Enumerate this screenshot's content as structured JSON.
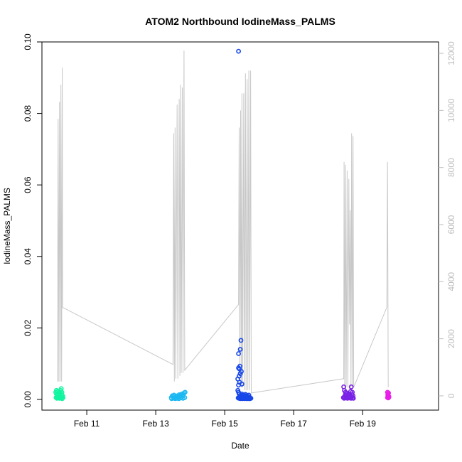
{
  "chart_data": {
    "type": "scatter",
    "title": "ATOM2 Northbound IodineMass_PALMS",
    "xlabel": "Date",
    "ylabel": "IodineMass_PALMS",
    "x_range_days": [
      9.7,
      21.2
    ],
    "x_ticks": [
      {
        "day": 11,
        "label": "Feb 11"
      },
      {
        "day": 13,
        "label": "Feb 13"
      },
      {
        "day": 15,
        "label": "Feb 15"
      },
      {
        "day": 17,
        "label": "Feb 17"
      },
      {
        "day": 19,
        "label": "Feb 19"
      }
    ],
    "ylim": [
      -0.003,
      0.1
    ],
    "y_ticks": [
      0.0,
      0.02,
      0.04,
      0.06,
      0.08,
      0.1
    ],
    "y_tick_labels": [
      "0.00",
      "0.02",
      "0.04",
      "0.06",
      "0.08",
      "0.10"
    ],
    "y2lim": [
      -500,
      12400
    ],
    "y2_ticks": [
      0,
      2000,
      4000,
      6000,
      8000,
      10000,
      12000
    ],
    "y2_tick_labels": [
      "0",
      "2000",
      "4000",
      "6000",
      "8000",
      "10000",
      "12000"
    ],
    "altitude_track": {
      "color": "#c8c8c8",
      "points": [
        [
          10.15,
          500
        ],
        [
          10.17,
          9700
        ],
        [
          10.19,
          500
        ],
        [
          10.21,
          10300
        ],
        [
          10.23,
          500
        ],
        [
          10.25,
          10900
        ],
        [
          10.27,
          500
        ],
        [
          10.29,
          11500
        ],
        [
          10.3,
          3100
        ],
        [
          13.5,
          1100
        ],
        [
          13.52,
          9200
        ],
        [
          13.54,
          500
        ],
        [
          13.56,
          9400
        ],
        [
          13.58,
          600
        ],
        [
          13.62,
          10200
        ],
        [
          13.64,
          600
        ],
        [
          13.68,
          10400
        ],
        [
          13.7,
          700
        ],
        [
          13.72,
          10900
        ],
        [
          13.74,
          800
        ],
        [
          13.77,
          10800
        ],
        [
          13.79,
          800
        ],
        [
          13.82,
          12100
        ],
        [
          13.84,
          900
        ],
        [
          15.4,
          3200
        ],
        [
          15.42,
          9400
        ],
        [
          15.44,
          400
        ],
        [
          15.46,
          10000
        ],
        [
          15.48,
          300
        ],
        [
          15.5,
          10600
        ],
        [
          15.52,
          300
        ],
        [
          15.55,
          10600
        ],
        [
          15.57,
          200
        ],
        [
          15.6,
          11300
        ],
        [
          15.62,
          200
        ],
        [
          15.65,
          11100
        ],
        [
          15.67,
          200
        ],
        [
          15.7,
          11400
        ],
        [
          15.72,
          200
        ],
        [
          15.75,
          11400
        ],
        [
          15.77,
          100
        ],
        [
          18.45,
          600
        ],
        [
          18.46,
          8200
        ],
        [
          18.48,
          300
        ],
        [
          18.5,
          8100
        ],
        [
          18.52,
          300
        ],
        [
          18.55,
          7900
        ],
        [
          18.57,
          300
        ],
        [
          18.6,
          7600
        ],
        [
          18.62,
          2500
        ],
        [
          18.64,
          6500
        ],
        [
          18.66,
          300
        ],
        [
          18.68,
          9200
        ],
        [
          18.7,
          300
        ],
        [
          18.72,
          9100
        ],
        [
          18.74,
          300
        ],
        [
          19.7,
          3100
        ],
        [
          19.72,
          8200
        ],
        [
          19.74,
          300
        ]
      ]
    },
    "series": [
      {
        "color": "#12f5a0",
        "points": [
          [
            10.1,
            0.002
          ],
          [
            10.12,
            0.0025
          ],
          [
            10.14,
            0.001
          ],
          [
            10.16,
            0.0015
          ],
          [
            10.18,
            0.0008
          ],
          [
            10.2,
            0.002
          ],
          [
            10.22,
            0.0012
          ],
          [
            10.24,
            0.0025
          ],
          [
            10.26,
            0.003
          ],
          [
            10.28,
            0.002
          ],
          [
            10.3,
            0.001
          ],
          [
            10.11,
            0.0005
          ],
          [
            10.13,
            0.0003
          ],
          [
            10.15,
            0.0006
          ],
          [
            10.17,
            0.0004
          ],
          [
            10.19,
            0.0007
          ],
          [
            10.21,
            0.0003
          ],
          [
            10.23,
            0.0005
          ],
          [
            10.25,
            0.0004
          ],
          [
            10.27,
            0.0006
          ],
          [
            10.29,
            0.0002
          ],
          [
            10.31,
            0.0005
          ],
          [
            10.12,
            0.0015
          ],
          [
            10.16,
            0.0022
          ],
          [
            10.2,
            0.0009
          ],
          [
            10.24,
            0.0017
          ],
          [
            10.28,
            0.0013
          ]
        ]
      },
      {
        "color": "#1cb8f2",
        "points": [
          [
            13.45,
            0.0005
          ],
          [
            13.48,
            0.001
          ],
          [
            13.5,
            0.0008
          ],
          [
            13.53,
            0.0012
          ],
          [
            13.55,
            0.0006
          ],
          [
            13.58,
            0.0009
          ],
          [
            13.6,
            0.0004
          ],
          [
            13.63,
            0.001
          ],
          [
            13.65,
            0.0007
          ],
          [
            13.68,
            0.0013
          ],
          [
            13.7,
            0.0008
          ],
          [
            13.72,
            0.0011
          ],
          [
            13.75,
            0.0015
          ],
          [
            13.78,
            0.0009
          ],
          [
            13.8,
            0.0014
          ],
          [
            13.82,
            0.0018
          ],
          [
            13.85,
            0.002
          ],
          [
            13.46,
            0.0002
          ],
          [
            13.52,
            0.0003
          ],
          [
            13.57,
            0.0002
          ],
          [
            13.62,
            0.0003
          ],
          [
            13.67,
            0.0002
          ],
          [
            13.73,
            0.0004
          ],
          [
            13.79,
            0.0003
          ],
          [
            13.84,
            0.0005
          ]
        ]
      },
      {
        "color": "#1848e8",
        "points": [
          [
            15.4,
            0.0974
          ],
          [
            15.47,
            0.0165
          ],
          [
            15.45,
            0.014
          ],
          [
            15.4,
            0.0128
          ],
          [
            15.44,
            0.0093
          ],
          [
            15.4,
            0.0088
          ],
          [
            15.43,
            0.0085
          ],
          [
            15.48,
            0.0078
          ],
          [
            15.45,
            0.0072
          ],
          [
            15.42,
            0.0065
          ],
          [
            15.38,
            0.0057
          ],
          [
            15.5,
            0.0043
          ],
          [
            15.43,
            0.0048
          ],
          [
            15.4,
            0.004
          ],
          [
            15.38,
            0.0025
          ],
          [
            15.4,
            0.002
          ],
          [
            15.42,
            0.0015
          ],
          [
            15.44,
            0.001
          ],
          [
            15.46,
            0.0012
          ],
          [
            15.48,
            0.0008
          ],
          [
            15.5,
            0.0015
          ],
          [
            15.52,
            0.0006
          ],
          [
            15.54,
            0.0012
          ],
          [
            15.56,
            0.0009
          ],
          [
            15.58,
            0.0011
          ],
          [
            15.6,
            0.0014
          ],
          [
            15.62,
            0.0007
          ],
          [
            15.64,
            0.001
          ],
          [
            15.66,
            0.0005
          ],
          [
            15.68,
            0.0008
          ],
          [
            15.7,
            0.0012
          ],
          [
            15.72,
            0.0006
          ],
          [
            15.74,
            0.0004
          ],
          [
            15.76,
            0.0003
          ],
          [
            15.39,
            0.0004
          ],
          [
            15.41,
            0.0003
          ],
          [
            15.43,
            0.0005
          ],
          [
            15.45,
            0.0002
          ],
          [
            15.47,
            0.0004
          ],
          [
            15.49,
            0.0003
          ],
          [
            15.51,
            0.0002
          ],
          [
            15.53,
            0.0004
          ],
          [
            15.55,
            0.0003
          ],
          [
            15.57,
            0.0002
          ],
          [
            15.59,
            0.0004
          ],
          [
            15.61,
            0.0003
          ],
          [
            15.63,
            0.0002
          ],
          [
            15.65,
            0.0003
          ],
          [
            15.67,
            0.0002
          ],
          [
            15.69,
            0.0004
          ],
          [
            15.71,
            0.0002
          ],
          [
            15.73,
            0.0002
          ]
        ]
      },
      {
        "color": "#7a22e6",
        "points": [
          [
            18.45,
            0.0035
          ],
          [
            18.47,
            0.0025
          ],
          [
            18.5,
            0.002
          ],
          [
            18.52,
            0.0015
          ],
          [
            18.55,
            0.001
          ],
          [
            18.57,
            0.0012
          ],
          [
            18.6,
            0.0008
          ],
          [
            18.62,
            0.0015
          ],
          [
            18.65,
            0.0022
          ],
          [
            18.67,
            0.0035
          ],
          [
            18.7,
            0.002
          ],
          [
            18.72,
            0.001
          ],
          [
            18.44,
            0.0005
          ],
          [
            18.46,
            0.0003
          ],
          [
            18.48,
            0.0006
          ],
          [
            18.51,
            0.0004
          ],
          [
            18.53,
            0.0005
          ],
          [
            18.56,
            0.0003
          ],
          [
            18.58,
            0.0006
          ],
          [
            18.61,
            0.0004
          ],
          [
            18.63,
            0.0005
          ],
          [
            18.66,
            0.0003
          ],
          [
            18.68,
            0.0006
          ],
          [
            18.71,
            0.0004
          ],
          [
            18.73,
            0.0003
          ],
          [
            18.49,
            0.0012
          ],
          [
            18.54,
            0.0018
          ],
          [
            18.59,
            0.0013
          ],
          [
            18.64,
            0.0009
          ],
          [
            18.69,
            0.0014
          ]
        ]
      },
      {
        "color": "#e81ee8",
        "points": [
          [
            19.72,
            0.002
          ],
          [
            19.73,
            0.0015
          ],
          [
            19.74,
            0.001
          ],
          [
            19.75,
            0.0018
          ],
          [
            19.76,
            0.0008
          ],
          [
            19.72,
            0.0005
          ],
          [
            19.74,
            0.0004
          ],
          [
            19.76,
            0.0006
          ],
          [
            19.73,
            0.0012
          ],
          [
            19.75,
            0.0009
          ]
        ]
      }
    ],
    "grid": false
  }
}
